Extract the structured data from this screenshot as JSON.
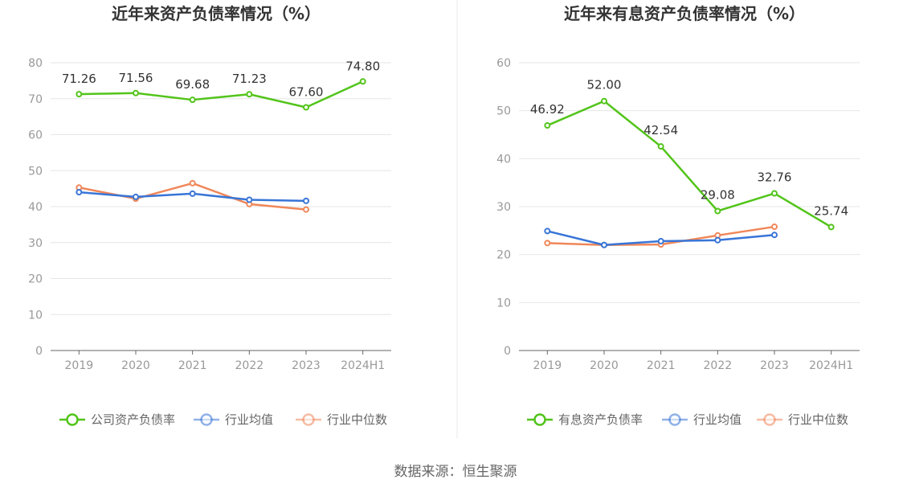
{
  "chart_data": [
    {
      "type": "line",
      "title": "近年来资产负债率情况（%）",
      "categories": [
        "2019",
        "2020",
        "2021",
        "2022",
        "2023",
        "2024H1"
      ],
      "ylim": [
        0,
        80
      ],
      "yticks": [
        0,
        10,
        20,
        30,
        40,
        50,
        60,
        70,
        80
      ],
      "grid": true,
      "legend_position": "bottom",
      "series": [
        {
          "name": "公司资产负债率",
          "color": "#52c41a",
          "values": [
            71.26,
            71.56,
            69.68,
            71.23,
            67.6,
            74.8
          ],
          "labels": [
            "71.26",
            "71.56",
            "69.68",
            "71.23",
            "67.60",
            "74.80"
          ]
        },
        {
          "name": "行业均值",
          "color": "#3875d7",
          "values": [
            44.0,
            42.7,
            43.6,
            41.9,
            41.6,
            null
          ]
        },
        {
          "name": "行业中位数",
          "color": "#f0875a",
          "values": [
            45.3,
            42.2,
            46.5,
            40.7,
            39.2,
            null
          ]
        }
      ]
    },
    {
      "type": "line",
      "title": "近年来有息资产负债率情况（%）",
      "categories": [
        "2019",
        "2020",
        "2021",
        "2022",
        "2023",
        "2024H1"
      ],
      "ylim": [
        0,
        60
      ],
      "yticks": [
        0,
        10,
        20,
        30,
        40,
        50,
        60
      ],
      "grid": true,
      "legend_position": "bottom",
      "series": [
        {
          "name": "有息资产负债率",
          "color": "#52c41a",
          "values": [
            46.92,
            52.0,
            42.54,
            29.08,
            32.76,
            25.74
          ],
          "labels": [
            "46.92",
            "52.00",
            "42.54",
            "29.08",
            "32.76",
            "25.74"
          ]
        },
        {
          "name": "行业均值",
          "color": "#3875d7",
          "values": [
            24.9,
            22.0,
            22.8,
            23.0,
            24.1,
            null
          ]
        },
        {
          "name": "行业中位数",
          "color": "#f0875a",
          "values": [
            22.4,
            22.0,
            22.1,
            24.0,
            25.8,
            null
          ]
        }
      ]
    }
  ],
  "footer": {
    "source": "数据来源：恒生聚源"
  }
}
